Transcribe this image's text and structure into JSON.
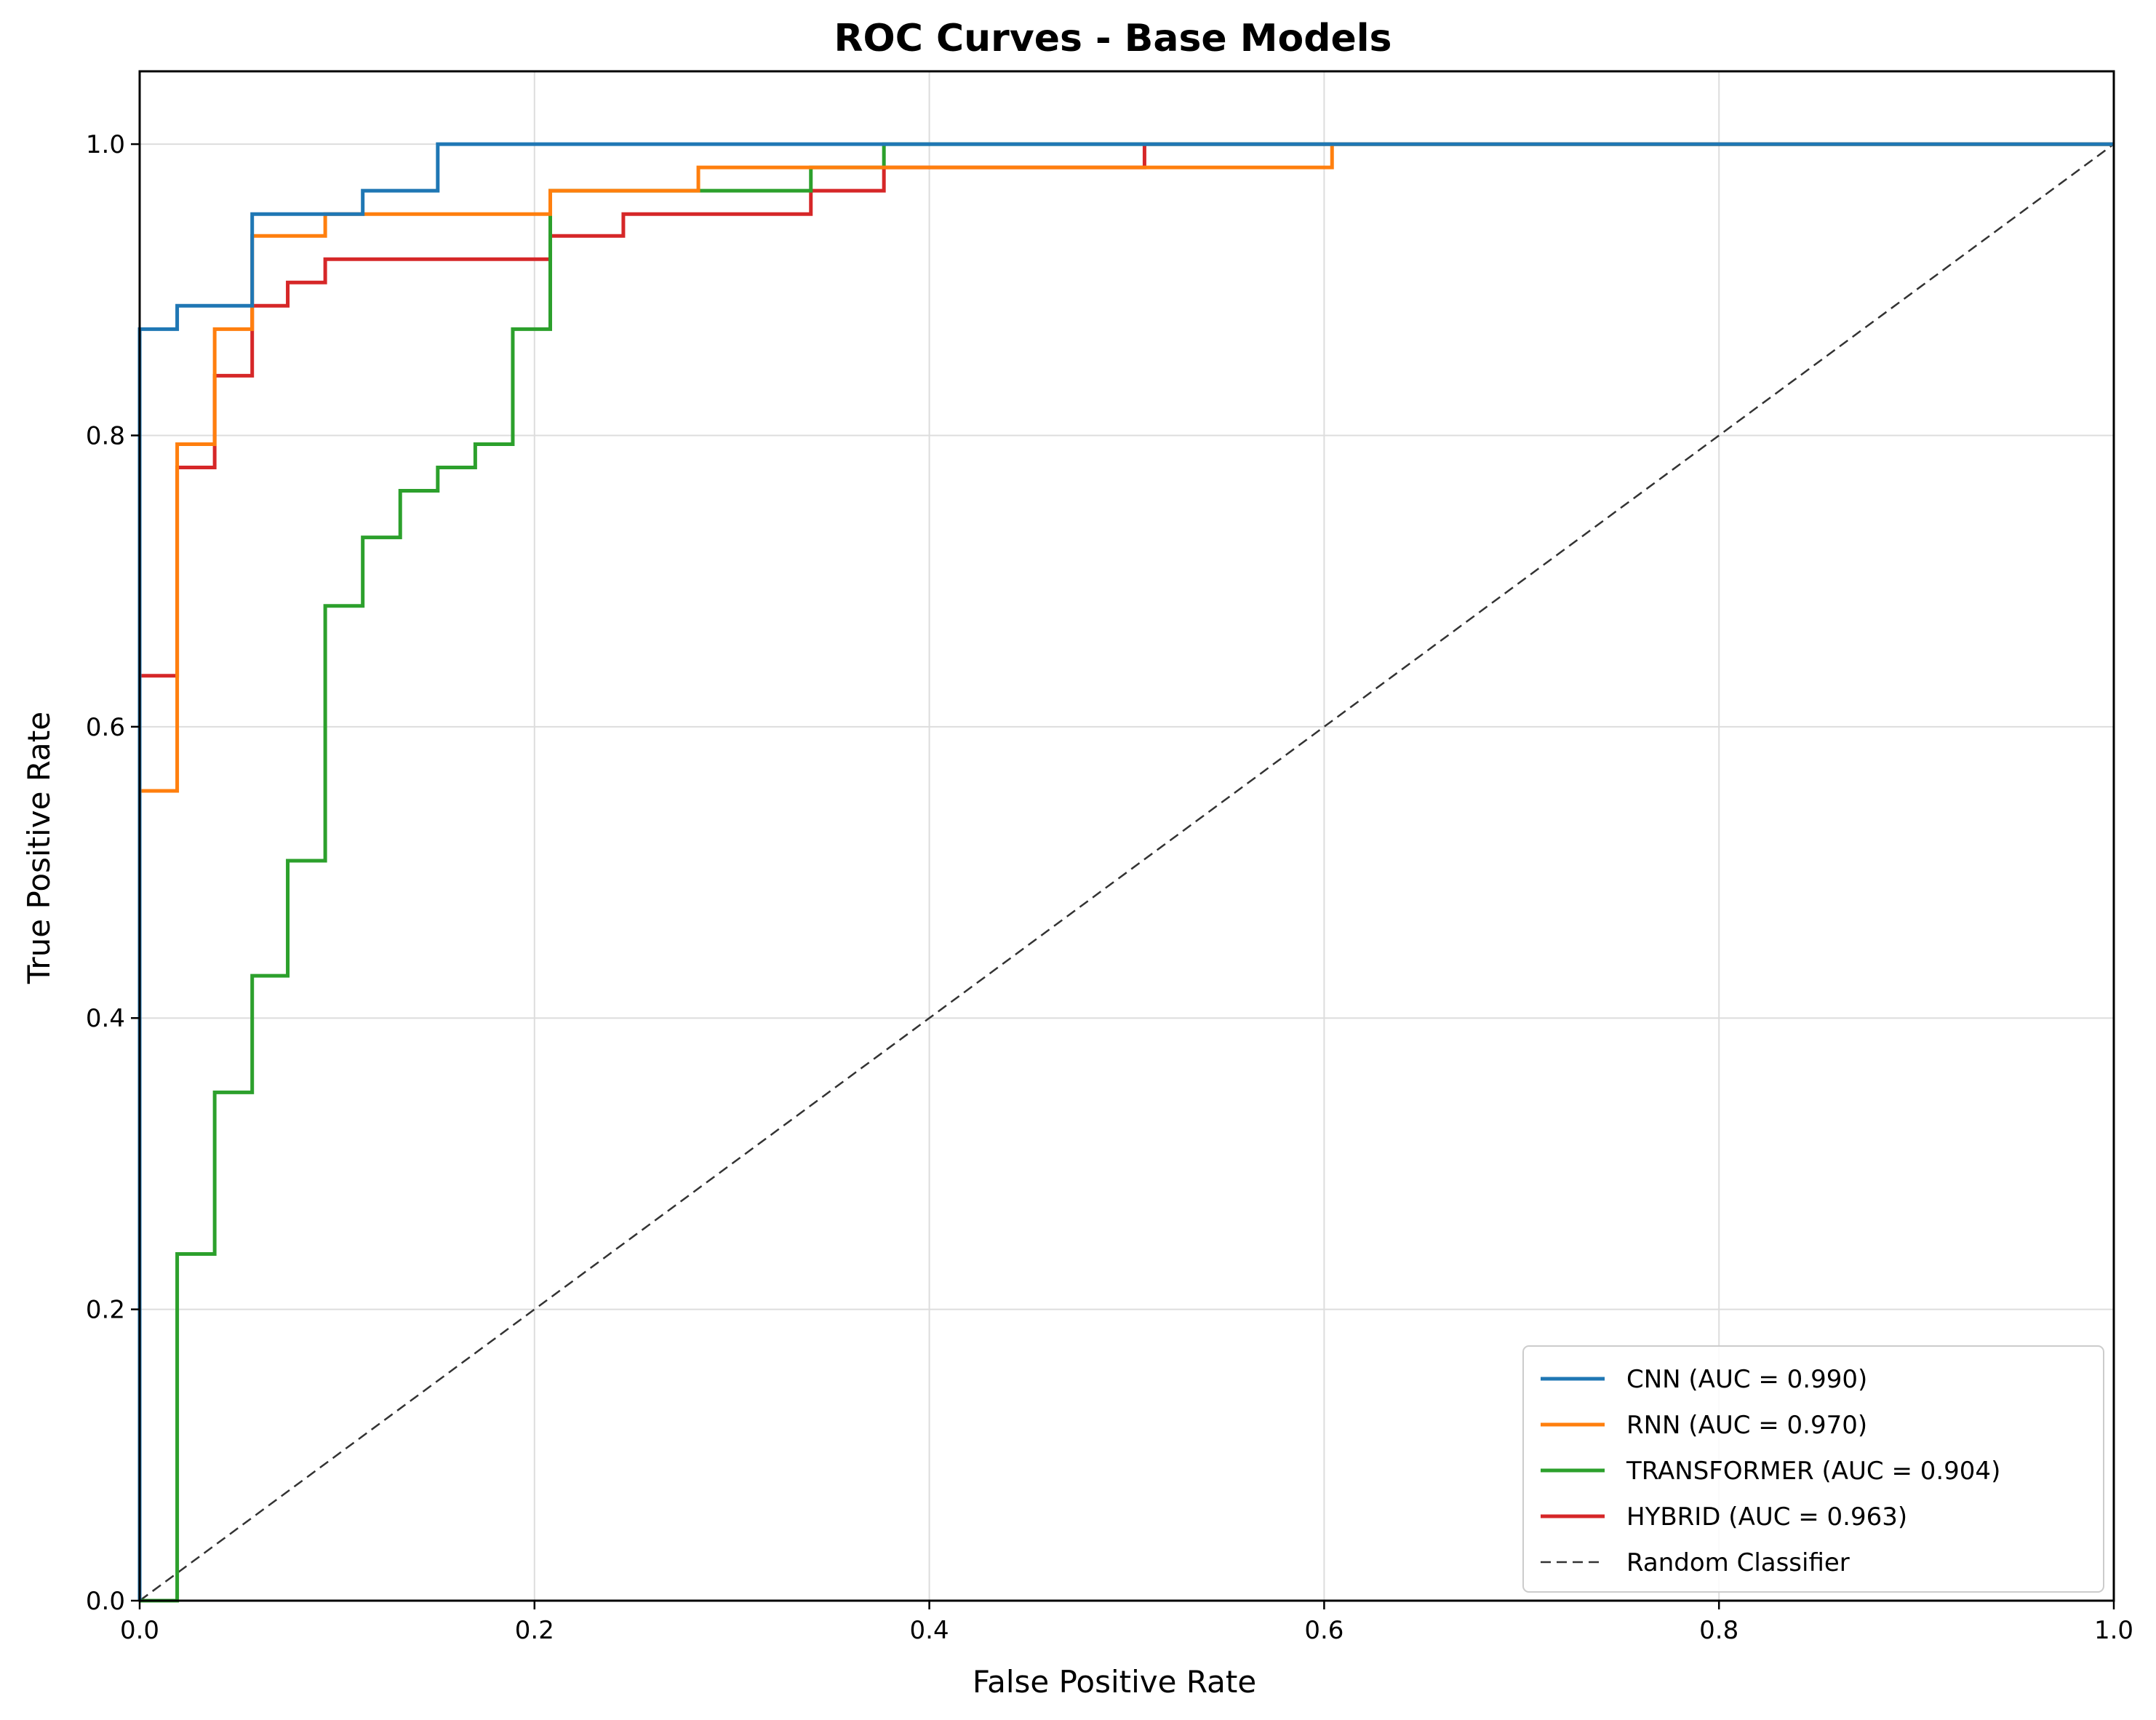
{
  "chart_data": {
    "type": "line",
    "title": "ROC Curves - Base Models",
    "xlabel": "False Positive Rate",
    "ylabel": "True Positive Rate",
    "xlim": [
      0.0,
      1.0
    ],
    "ylim": [
      0.0,
      1.05
    ],
    "x_ticks": [
      "0.0",
      "0.2",
      "0.4",
      "0.6",
      "0.8",
      "1.0"
    ],
    "y_ticks": [
      "0.0",
      "0.2",
      "0.4",
      "0.6",
      "0.8",
      "1.0"
    ],
    "grid": true,
    "legend_position": "bottom-right",
    "series": [
      {
        "name": "CNN (AUC = 0.990)",
        "color": "#1f77b4",
        "step": true,
        "x": [
          0,
          0,
          0.019,
          0.019,
          0.057,
          0.057,
          0.113,
          0.113,
          0.151,
          0.151,
          1.0
        ],
        "y": [
          0,
          0.873,
          0.873,
          0.889,
          0.889,
          0.952,
          0.952,
          0.968,
          0.968,
          1.0,
          1.0
        ]
      },
      {
        "name": "RNN (AUC = 0.970)",
        "color": "#ff7f0e",
        "step": true,
        "x": [
          0,
          0,
          0.019,
          0.019,
          0.038,
          0.038,
          0.057,
          0.057,
          0.094,
          0.094,
          0.208,
          0.208,
          0.283,
          0.283,
          0.604,
          0.604,
          1.0
        ],
        "y": [
          0,
          0.556,
          0.556,
          0.794,
          0.794,
          0.873,
          0.873,
          0.937,
          0.937,
          0.952,
          0.952,
          0.968,
          0.968,
          0.984,
          0.984,
          1.0,
          1.0
        ]
      },
      {
        "name": "TRANSFORMER (AUC = 0.904)",
        "color": "#2ca02c",
        "step": true,
        "x": [
          0,
          0.019,
          0.019,
          0.038,
          0.038,
          0.057,
          0.057,
          0.075,
          0.075,
          0.094,
          0.094,
          0.113,
          0.113,
          0.132,
          0.132,
          0.151,
          0.151,
          0.17,
          0.17,
          0.189,
          0.189,
          0.208,
          0.208,
          0.34,
          0.34,
          0.377,
          0.377,
          1.0
        ],
        "y": [
          0,
          0,
          0.238,
          0.238,
          0.349,
          0.349,
          0.429,
          0.429,
          0.508,
          0.508,
          0.683,
          0.683,
          0.73,
          0.73,
          0.762,
          0.762,
          0.778,
          0.778,
          0.794,
          0.794,
          0.873,
          0.873,
          0.968,
          0.968,
          0.984,
          0.984,
          1.0,
          1.0
        ]
      },
      {
        "name": "HYBRID (AUC = 0.963)",
        "color": "#d62728",
        "step": true,
        "x": [
          0,
          0,
          0.019,
          0.019,
          0.038,
          0.038,
          0.057,
          0.057,
          0.075,
          0.075,
          0.094,
          0.094,
          0.208,
          0.208,
          0.245,
          0.245,
          0.34,
          0.34,
          0.377,
          0.377,
          0.509,
          0.509,
          1.0
        ],
        "y": [
          0,
          0.635,
          0.635,
          0.778,
          0.778,
          0.841,
          0.841,
          0.889,
          0.889,
          0.905,
          0.905,
          0.921,
          0.921,
          0.937,
          0.937,
          0.952,
          0.952,
          0.968,
          0.968,
          0.984,
          0.984,
          1.0,
          1.0
        ]
      },
      {
        "name": "Random Classifier",
        "color": "#333333",
        "dashed": true,
        "x": [
          0,
          1
        ],
        "y": [
          0,
          1
        ]
      }
    ]
  }
}
